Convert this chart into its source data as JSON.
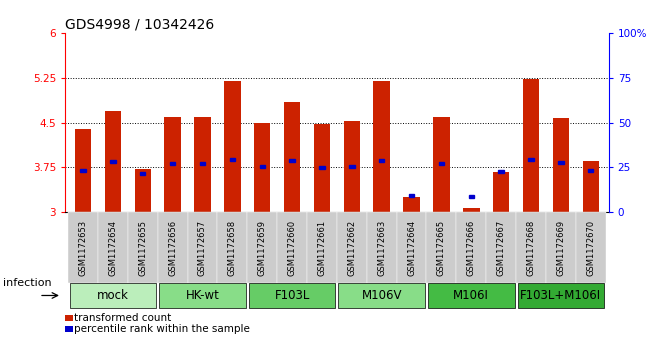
{
  "title": "GDS4998 / 10342426",
  "samples": [
    "GSM1172653",
    "GSM1172654",
    "GSM1172655",
    "GSM1172656",
    "GSM1172657",
    "GSM1172658",
    "GSM1172659",
    "GSM1172660",
    "GSM1172661",
    "GSM1172662",
    "GSM1172663",
    "GSM1172664",
    "GSM1172665",
    "GSM1172666",
    "GSM1172667",
    "GSM1172668",
    "GSM1172669",
    "GSM1172670"
  ],
  "red_values": [
    4.4,
    4.7,
    3.73,
    4.6,
    4.6,
    5.2,
    4.5,
    4.85,
    4.47,
    4.52,
    5.19,
    3.25,
    4.6,
    3.08,
    3.68,
    5.22,
    4.57,
    3.85
  ],
  "blue_values": [
    3.7,
    3.85,
    3.65,
    3.82,
    3.82,
    3.88,
    3.77,
    3.87,
    3.75,
    3.77,
    3.87,
    3.28,
    3.82,
    3.27,
    3.68,
    3.88,
    3.83,
    3.7
  ],
  "ymin": 3.0,
  "ymax": 6.0,
  "yticks_left": [
    3.0,
    3.75,
    4.5,
    5.25,
    6.0
  ],
  "yticks_left_labels": [
    "3",
    "3.75",
    "4.5",
    "5.25",
    "6"
  ],
  "yticks_right_vals": [
    0,
    25,
    50,
    75,
    100
  ],
  "yticks_right_labels": [
    "0",
    "25",
    "50",
    "75",
    "100%"
  ],
  "groups": [
    {
      "label": "mock",
      "start": 0,
      "end": 2,
      "color": "#bbeebb"
    },
    {
      "label": "HK-wt",
      "start": 3,
      "end": 5,
      "color": "#88dd88"
    },
    {
      "label": "F103L",
      "start": 6,
      "end": 8,
      "color": "#66cc66"
    },
    {
      "label": "M106V",
      "start": 9,
      "end": 11,
      "color": "#88dd88"
    },
    {
      "label": "M106I",
      "start": 12,
      "end": 14,
      "color": "#44bb44"
    },
    {
      "label": "F103L+M106I",
      "start": 15,
      "end": 17,
      "color": "#33aa33"
    }
  ],
  "bar_color": "#cc2200",
  "blue_color": "#0000cc",
  "bar_width": 0.55,
  "xtick_bg": "#cccccc",
  "xlabel_infection": "infection",
  "legend_red": "transformed count",
  "legend_blue": "percentile rank within the sample",
  "title_fontsize": 10,
  "tick_fontsize": 7.5,
  "group_label_fontsize": 8.5,
  "sample_fontsize": 6.0
}
